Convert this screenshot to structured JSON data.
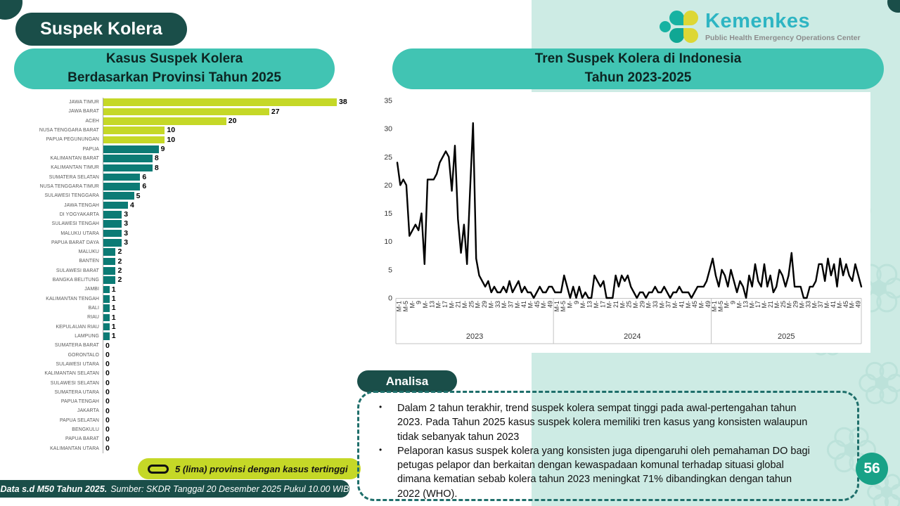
{
  "page": {
    "title": "Suspek Kolera",
    "number": "56"
  },
  "colors": {
    "dark_teal": "#1a4e49",
    "header_teal": "#41c4b3",
    "mint": "#cdebe4",
    "lime": "#c5d827",
    "bar_teal": "#0c7b75",
    "line_black": "#000000",
    "page_circle": "#18a287",
    "kemenkes_blue": "#2eb5c3",
    "axis_gray": "#c3c3c3"
  },
  "logo": {
    "name": "Kemenkes",
    "subtitle": "Public Health Emergency Operations Center"
  },
  "bar_header": {
    "line1": "Kasus Suspek Kolera",
    "line2": "Berdasarkan Provinsi Tahun 2025"
  },
  "line_header": {
    "line1": "Tren Suspek Kolera di Indonesia",
    "line2": "Tahun 2023-2025"
  },
  "legend": {
    "text": "5 (lima) provinsi dengan kasus tertinggi"
  },
  "footer": {
    "bold": "Data s.d M50 Tahun 2025.",
    "rest": "Sumber: SKDR Tanggal 20 Desember 2025 Pukul 10.00 WIB"
  },
  "analysis": {
    "title": "Analisa",
    "bullets": [
      "Dalam 2 tahun terakhir, trend suspek kolera sempat tinggi pada awal-pertengahan tahun 2023. Pada Tahun 2025 kasus suspek kolera memiliki tren kasus yang konsisten walaupun tidak sebanyak tahun 2023",
      "Pelaporan kasus suspek kolera yang konsisten juga dipengaruhi oleh pemahaman DO bagi petugas pelapor dan berkaitan dengan kewaspadaan komunal terhadap situasi global dimana kematian sebab kolera tahun 2023 meningkat 71% dibandingkan dengan tahun 2022 (WHO)."
    ]
  },
  "chart_data": [
    {
      "type": "bar",
      "orientation": "horizontal",
      "title": "Kasus Suspek Kolera Berdasarkan Provinsi Tahun 2025",
      "categories": [
        "JAWA TIMUR",
        "JAWA BARAT",
        "ACEH",
        "NUSA TENGGARA BARAT",
        "PAPUA PEGUNUNGAN",
        "PAPUA",
        "KALIMANTAN BARAT",
        "KALIMANTAN TIMUR",
        "SUMATERA SELATAN",
        "NUSA TENGGARA TIMUR",
        "SULAWESI TENGGARA",
        "JAWA TENGAH",
        "DI YOGYAKARTA",
        "SULAWESI TENGAH",
        "MALUKU UTARA",
        "PAPUA BARAT DAYA",
        "MALUKU",
        "BANTEN",
        "SULAWESI BARAT",
        "BANGKA BELITUNG",
        "JAMBI",
        "KALIMANTAN TENGAH",
        "BALI",
        "RIAU",
        "KEPULAUAN RIAU",
        "LAMPUNG",
        "SUMATERA BARAT",
        "GORONTALO",
        "SULAWESI UTARA",
        "KALIMANTAN SELATAN",
        "SULAWESI SELATAN",
        "SUMATERA UTARA",
        "PAPUA TENGAH",
        "JAKARTA",
        "PAPUA SELATAN",
        "BENGKULU",
        "PAPUA BARAT",
        "KALIMANTAN UTARA"
      ],
      "values": [
        38,
        27,
        20,
        10,
        10,
        9,
        8,
        8,
        6,
        6,
        5,
        4,
        3,
        3,
        3,
        3,
        2,
        2,
        2,
        2,
        1,
        1,
        1,
        1,
        1,
        1,
        0,
        0,
        0,
        0,
        0,
        0,
        0,
        0,
        0,
        0,
        0,
        0
      ],
      "highlight_top_n": 5,
      "highlight_color": "#c5d827",
      "bar_color": "#0c7b75",
      "value_labels": true,
      "xlim": [
        0,
        38
      ]
    },
    {
      "type": "line",
      "title": "Tren Suspek Kolera di Indonesia Tahun 2023-2025",
      "x_unit": "epidemiological week (M-)",
      "ylim": [
        0,
        35
      ],
      "y_ticks": [
        0,
        5,
        10,
        15,
        20,
        25,
        30,
        35
      ],
      "grid": false,
      "legend_position": "none",
      "line_color": "#000000",
      "x_tick_labels_per_year": [
        "M-1",
        "M-5",
        "M-",
        "9",
        "M-",
        "13",
        "M-",
        "17",
        "M-",
        "21",
        "M-",
        "25",
        "M-",
        "29",
        "M-",
        "33",
        "M-",
        "37",
        "M-",
        "41",
        "M-",
        "45",
        "M-",
        "49"
      ],
      "series": [
        {
          "name": "2023",
          "values": [
            24,
            20,
            21,
            20,
            11,
            12,
            13,
            12,
            15,
            6,
            21,
            21,
            21,
            22,
            24,
            25,
            26,
            25,
            19,
            27,
            14,
            8,
            13,
            6,
            19,
            31,
            7,
            4,
            3,
            2,
            3,
            1,
            2,
            1,
            1,
            2,
            1,
            3,
            1,
            2,
            3,
            1,
            2,
            1,
            1,
            0,
            1,
            2,
            1,
            1,
            2,
            2
          ]
        },
        {
          "name": "2024",
          "values": [
            1,
            1,
            1,
            4,
            2,
            0,
            2,
            0,
            2,
            0,
            1,
            0,
            0,
            4,
            3,
            2,
            3,
            0,
            0,
            0,
            4,
            2,
            4,
            3,
            4,
            2,
            1,
            0,
            1,
            1,
            0,
            1,
            1,
            2,
            1,
            1,
            2,
            1,
            0,
            1,
            1,
            2,
            1,
            1,
            1,
            0,
            1,
            2,
            2,
            2,
            3,
            5
          ]
        },
        {
          "name": "2025",
          "values": [
            7,
            4,
            2,
            5,
            4,
            2,
            5,
            3,
            1,
            3,
            2,
            0,
            4,
            2,
            6,
            3,
            2,
            6,
            2,
            4,
            1,
            2,
            5,
            4,
            2,
            4,
            8,
            2,
            2,
            2,
            0,
            0,
            2,
            2,
            3,
            6,
            6,
            3,
            7,
            4,
            6,
            2,
            7,
            4,
            6,
            4,
            3,
            6,
            4,
            2
          ]
        }
      ]
    }
  ]
}
